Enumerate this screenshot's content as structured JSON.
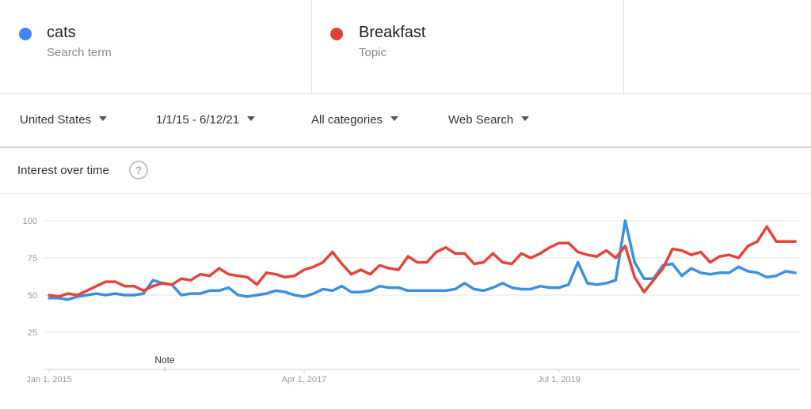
{
  "terms": [
    {
      "name": "cats",
      "type": "Search term",
      "color": "#4285f4"
    },
    {
      "name": "Breakfast",
      "type": "Topic",
      "color": "#db4437"
    }
  ],
  "filters": {
    "region": "United States",
    "date_range": "1/1/15 - 6/12/21",
    "category": "All categories",
    "search_type": "Web Search"
  },
  "section": {
    "title": "Interest over time",
    "help": "?"
  },
  "note_label": "Note",
  "chart_data": {
    "type": "line",
    "title": "",
    "xlabel": "",
    "ylabel": "",
    "x_tick_labels": [
      "Jan 1, 2015",
      "Apr 1, 2017",
      "Jul 1, 2019"
    ],
    "x_tick_index": [
      0,
      27,
      54
    ],
    "y_ticks": [
      25,
      50,
      75,
      100
    ],
    "ylim": [
      0,
      100
    ],
    "grid": true,
    "series": [
      {
        "name": "cats",
        "color": "#3d8fe0",
        "values": [
          48,
          48,
          47,
          49,
          50,
          51,
          50,
          51,
          50,
          50,
          51,
          60,
          58,
          57,
          50,
          51,
          51,
          53,
          53,
          55,
          50,
          49,
          50,
          51,
          53,
          52,
          50,
          49,
          51,
          54,
          53,
          56,
          52,
          52,
          53,
          56,
          55,
          55,
          53,
          53,
          53,
          53,
          53,
          54,
          58,
          54,
          53,
          55,
          58,
          55,
          54,
          54,
          56,
          55,
          55,
          57,
          72,
          58,
          57,
          58,
          60,
          100,
          72,
          61,
          61,
          70,
          71,
          63,
          68,
          65,
          64,
          65,
          65,
          69,
          66,
          65,
          62,
          63,
          66,
          65
        ]
      },
      {
        "name": "Breakfast",
        "color": "#e4453a",
        "values": [
          50,
          49,
          51,
          50,
          53,
          56,
          59,
          59,
          56,
          56,
          53,
          56,
          58,
          57,
          61,
          60,
          64,
          63,
          68,
          64,
          63,
          62,
          57,
          65,
          64,
          62,
          63,
          67,
          69,
          72,
          79,
          71,
          64,
          67,
          64,
          70,
          68,
          67,
          76,
          72,
          72,
          79,
          82,
          78,
          78,
          71,
          72,
          78,
          72,
          71,
          78,
          75,
          78,
          82,
          85,
          85,
          79,
          77,
          76,
          80,
          75,
          83,
          62,
          52,
          60,
          68,
          81,
          80,
          77,
          79,
          72,
          76,
          77,
          75,
          83,
          86,
          96,
          86,
          86,
          86
        ]
      }
    ]
  }
}
